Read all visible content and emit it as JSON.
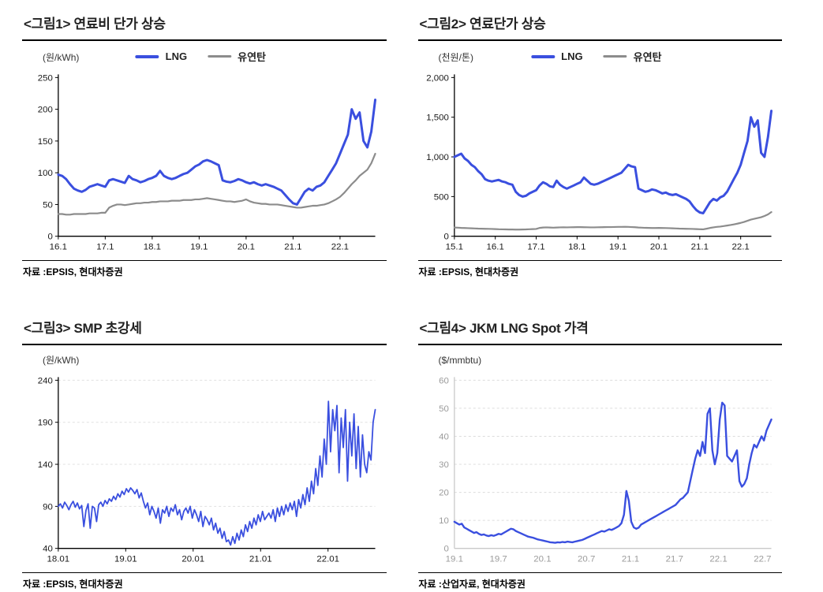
{
  "page": {
    "background": "#ffffff"
  },
  "chart_data": [
    {
      "type": "line",
      "title": "<그림1> 연료비 단가 상승",
      "unit": "(원/kWh)",
      "source": "자료 :EPSIS, 현대차증권",
      "x_range": [
        2016.0,
        2022.75
      ],
      "y_range": [
        0,
        250
      ],
      "y_ticks": [
        {
          "v": 0,
          "label": "0"
        },
        {
          "v": 50,
          "label": "50"
        },
        {
          "v": 100,
          "label": "100"
        },
        {
          "v": 150,
          "label": "150"
        },
        {
          "v": 200,
          "label": "200"
        },
        {
          "v": 250,
          "label": "250"
        }
      ],
      "x_ticks": [
        {
          "v": 2016,
          "label": "16.1"
        },
        {
          "v": 2017,
          "label": "17.1"
        },
        {
          "v": 2018,
          "label": "18.1"
        },
        {
          "v": 2019,
          "label": "19.1"
        },
        {
          "v": 2020,
          "label": "20.1"
        },
        {
          "v": 2021,
          "label": "21.1"
        },
        {
          "v": 2022,
          "label": "22.1"
        }
      ],
      "grid": false,
      "grid_color": "#d9d9d9",
      "axis": true,
      "axis_color": "#000000",
      "label_color": "#1a1a1a",
      "tick_marks": true,
      "series": [
        {
          "name": "LNG",
          "color": "#3a4fdf",
          "w": 3,
          "values": [
            97,
            95,
            90,
            82,
            75,
            72,
            70,
            73,
            78,
            80,
            82,
            80,
            78,
            88,
            90,
            88,
            86,
            84,
            95,
            90,
            88,
            85,
            87,
            90,
            92,
            95,
            103,
            95,
            92,
            90,
            92,
            95,
            98,
            100,
            105,
            110,
            113,
            118,
            120,
            118,
            115,
            112,
            88,
            86,
            85,
            87,
            90,
            88,
            85,
            83,
            85,
            82,
            80,
            82,
            80,
            78,
            75,
            72,
            65,
            58,
            52,
            50,
            60,
            70,
            75,
            72,
            78,
            80,
            85,
            95,
            105,
            115,
            130,
            145,
            160,
            200,
            185,
            195,
            150,
            140,
            165,
            215
          ]
        },
        {
          "name": "유연탄",
          "color": "#8c8c8c",
          "w": 2.2,
          "values": [
            35,
            35,
            34,
            34,
            35,
            35,
            35,
            35,
            36,
            36,
            36,
            37,
            37,
            45,
            48,
            50,
            50,
            49,
            50,
            51,
            52,
            52,
            53,
            53,
            54,
            54,
            55,
            55,
            55,
            56,
            56,
            56,
            57,
            57,
            57,
            58,
            58,
            59,
            60,
            59,
            58,
            57,
            56,
            55,
            55,
            54,
            55,
            56,
            58,
            55,
            53,
            52,
            51,
            51,
            50,
            50,
            50,
            49,
            48,
            47,
            46,
            45,
            45,
            46,
            47,
            48,
            48,
            49,
            50,
            52,
            55,
            58,
            62,
            68,
            75,
            82,
            88,
            95,
            100,
            105,
            115,
            130
          ]
        }
      ]
    },
    {
      "type": "line",
      "title": "<그림2> 연료단가 상승",
      "unit": "(천원/톤)",
      "source": "자료 :EPSIS, 현대차증권",
      "x_range": [
        2015.0,
        2022.75
      ],
      "y_range": [
        0,
        2000
      ],
      "y_ticks": [
        {
          "v": 0,
          "label": "0"
        },
        {
          "v": 500,
          "label": "500"
        },
        {
          "v": 1000,
          "label": "1,000"
        },
        {
          "v": 1500,
          "label": "1,500"
        },
        {
          "v": 2000,
          "label": "2,000"
        }
      ],
      "x_ticks": [
        {
          "v": 2015,
          "label": "15.1"
        },
        {
          "v": 2016,
          "label": "16.1"
        },
        {
          "v": 2017,
          "label": "17.1"
        },
        {
          "v": 2018,
          "label": "18.1"
        },
        {
          "v": 2019,
          "label": "19.1"
        },
        {
          "v": 2020,
          "label": "20.1"
        },
        {
          "v": 2021,
          "label": "21.1"
        },
        {
          "v": 2022,
          "label": "22.1"
        }
      ],
      "grid": false,
      "grid_color": "#d9d9d9",
      "axis": true,
      "axis_color": "#000000",
      "label_color": "#1a1a1a",
      "tick_marks": true,
      "series": [
        {
          "name": "LNG",
          "color": "#3a4fdf",
          "w": 3,
          "values": [
            1000,
            1020,
            1040,
            980,
            950,
            900,
            870,
            820,
            780,
            720,
            700,
            690,
            700,
            710,
            690,
            680,
            660,
            650,
            560,
            520,
            500,
            510,
            540,
            560,
            580,
            640,
            680,
            660,
            630,
            620,
            700,
            650,
            620,
            600,
            620,
            640,
            660,
            680,
            740,
            700,
            660,
            650,
            660,
            680,
            700,
            720,
            740,
            760,
            780,
            800,
            850,
            900,
            880,
            870,
            600,
            580,
            560,
            570,
            590,
            580,
            560,
            540,
            550,
            530,
            520,
            530,
            510,
            490,
            470,
            440,
            380,
            330,
            300,
            290,
            360,
            430,
            470,
            450,
            490,
            510,
            560,
            640,
            720,
            800,
            900,
            1050,
            1200,
            1500,
            1380,
            1460,
            1050,
            1000,
            1250,
            1580
          ]
        },
        {
          "name": "유연탄",
          "color": "#8c8c8c",
          "w": 2.2,
          "values": [
            110,
            108,
            105,
            104,
            102,
            100,
            98,
            96,
            95,
            94,
            93,
            92,
            90,
            88,
            87,
            86,
            85,
            85,
            84,
            84,
            85,
            86,
            88,
            90,
            92,
            105,
            110,
            112,
            110,
            108,
            110,
            112,
            113,
            112,
            113,
            114,
            115,
            115,
            114,
            113,
            112,
            112,
            113,
            114,
            115,
            116,
            116,
            117,
            118,
            118,
            119,
            118,
            116,
            114,
            110,
            108,
            106,
            105,
            104,
            104,
            105,
            104,
            103,
            102,
            100,
            98,
            96,
            95,
            94,
            93,
            92,
            90,
            88,
            87,
            95,
            105,
            112,
            118,
            122,
            128,
            135,
            142,
            150,
            158,
            168,
            180,
            195,
            210,
            220,
            230,
            240,
            255,
            275,
            305
          ]
        }
      ]
    },
    {
      "type": "line",
      "title": "<그림3> SMP 초강세",
      "unit": "(원/kWh)",
      "source": "자료 :EPSIS, 현대차증권",
      "x_range": [
        2018.0,
        2022.7
      ],
      "y_range": [
        40,
        240
      ],
      "y_ticks": [
        {
          "v": 40,
          "label": "40"
        },
        {
          "v": 90,
          "label": "90"
        },
        {
          "v": 140,
          "label": "140"
        },
        {
          "v": 190,
          "label": "190"
        },
        {
          "v": 240,
          "label": "240"
        }
      ],
      "x_ticks": [
        {
          "v": 2018,
          "label": "18.01"
        },
        {
          "v": 2019,
          "label": "19.01"
        },
        {
          "v": 2020,
          "label": "20.01"
        },
        {
          "v": 2021,
          "label": "21.01"
        },
        {
          "v": 2022,
          "label": "22.01"
        }
      ],
      "grid": true,
      "grid_color": "#e0e0e0",
      "axis": true,
      "axis_color": "#000000",
      "label_color": "#1a1a1a",
      "tick_marks": true,
      "series": [
        {
          "name": "SMP",
          "color": "#3a4fdf",
          "w": 1.8,
          "values": [
            90,
            93,
            88,
            95,
            91,
            86,
            92,
            96,
            89,
            94,
            87,
            91,
            66,
            85,
            93,
            64,
            90,
            88,
            72,
            92,
            95,
            90,
            97,
            93,
            99,
            96,
            102,
            98,
            105,
            101,
            108,
            104,
            111,
            107,
            112,
            109,
            105,
            110,
            100,
            106,
            96,
            88,
            94,
            80,
            90,
            84,
            76,
            88,
            70,
            86,
            82,
            90,
            78,
            88,
            84,
            92,
            80,
            86,
            74,
            84,
            88,
            82,
            90,
            76,
            86,
            80,
            72,
            84,
            66,
            78,
            74,
            68,
            76,
            62,
            70,
            58,
            64,
            52,
            60,
            48,
            50,
            44,
            54,
            46,
            58,
            50,
            62,
            54,
            68,
            60,
            72,
            64,
            76,
            68,
            80,
            72,
            84,
            74,
            78,
            82,
            76,
            86,
            72,
            88,
            78,
            90,
            80,
            92,
            84,
            94,
            86,
            96,
            78,
            98,
            88,
            104,
            92,
            112,
            96,
            120,
            105,
            135,
            115,
            150,
            125,
            170,
            140,
            215,
            155,
            205,
            180,
            210,
            130,
            195,
            160,
            205,
            120,
            190,
            150,
            200,
            135,
            185,
            125,
            175,
            140,
            130,
            155,
            145,
            190,
            205
          ]
        }
      ]
    },
    {
      "type": "line",
      "title": "<그림4> JKM LNG Spot 가격",
      "unit": "($/mmbtu)",
      "source": "자료 :산업자료, 현대차증권",
      "x_range": [
        2019.0,
        2022.6
      ],
      "y_range": [
        0,
        60
      ],
      "y_ticks": [
        {
          "v": 0,
          "label": "0"
        },
        {
          "v": 10,
          "label": "10"
        },
        {
          "v": 20,
          "label": "20"
        },
        {
          "v": 30,
          "label": "30"
        },
        {
          "v": 40,
          "label": "40"
        },
        {
          "v": 50,
          "label": "50"
        },
        {
          "v": 60,
          "label": "60"
        }
      ],
      "x_ticks": [
        {
          "v": 2019.0,
          "label": "19.1"
        },
        {
          "v": 2019.5,
          "label": "19.7"
        },
        {
          "v": 2020.0,
          "label": "20.1"
        },
        {
          "v": 2020.5,
          "label": "20.7"
        },
        {
          "v": 2021.0,
          "label": "21.1"
        },
        {
          "v": 2021.5,
          "label": "21.7"
        },
        {
          "v": 2022.0,
          "label": "22.1"
        },
        {
          "v": 2022.5,
          "label": "22.7"
        }
      ],
      "grid": true,
      "grid_color": "#dcdcdc",
      "axis": true,
      "axis_color": "#c9c9c9",
      "label_color": "#9b9b9b",
      "tick_marks": false,
      "series": [
        {
          "name": "JKM",
          "color": "#3a4fdf",
          "w": 2.4,
          "values": [
            9.5,
            9.0,
            8.5,
            8.8,
            7.5,
            7.0,
            6.5,
            6.0,
            5.5,
            5.8,
            5.2,
            4.8,
            5.0,
            4.6,
            4.4,
            4.7,
            4.5,
            4.8,
            5.2,
            5.0,
            5.5,
            6.0,
            6.5,
            7.0,
            6.8,
            6.2,
            5.8,
            5.4,
            5.0,
            4.6,
            4.2,
            4.0,
            3.8,
            3.5,
            3.2,
            3.0,
            2.8,
            2.6,
            2.4,
            2.2,
            2.1,
            2.0,
            2.2,
            2.1,
            2.3,
            2.2,
            2.4,
            2.3,
            2.2,
            2.4,
            2.6,
            2.8,
            3.0,
            3.4,
            3.8,
            4.2,
            4.6,
            5.0,
            5.4,
            5.8,
            6.2,
            6.0,
            6.4,
            6.8,
            6.6,
            7.0,
            7.5,
            8.0,
            9.0,
            12.0,
            20.5,
            17.0,
            9.5,
            7.5,
            7.0,
            7.4,
            8.5,
            9.0,
            9.5,
            10.0,
            10.5,
            11.0,
            11.5,
            12.0,
            12.5,
            13.0,
            13.5,
            14.0,
            14.5,
            15.0,
            15.5,
            16.5,
            17.5,
            18.0,
            19.0,
            20.0,
            24.0,
            28.0,
            32.0,
            35.0,
            33.0,
            38.0,
            34.0,
            48.0,
            50.0,
            35.0,
            30.0,
            34.0,
            46.0,
            52.0,
            51.0,
            33.0,
            32.0,
            31.0,
            33.0,
            35.0,
            24.0,
            22.0,
            23.0,
            25.0,
            30.0,
            34.0,
            37.0,
            36.0,
            38.0,
            40.0,
            38.5,
            42.0,
            44.0,
            46.0
          ]
        }
      ]
    }
  ]
}
